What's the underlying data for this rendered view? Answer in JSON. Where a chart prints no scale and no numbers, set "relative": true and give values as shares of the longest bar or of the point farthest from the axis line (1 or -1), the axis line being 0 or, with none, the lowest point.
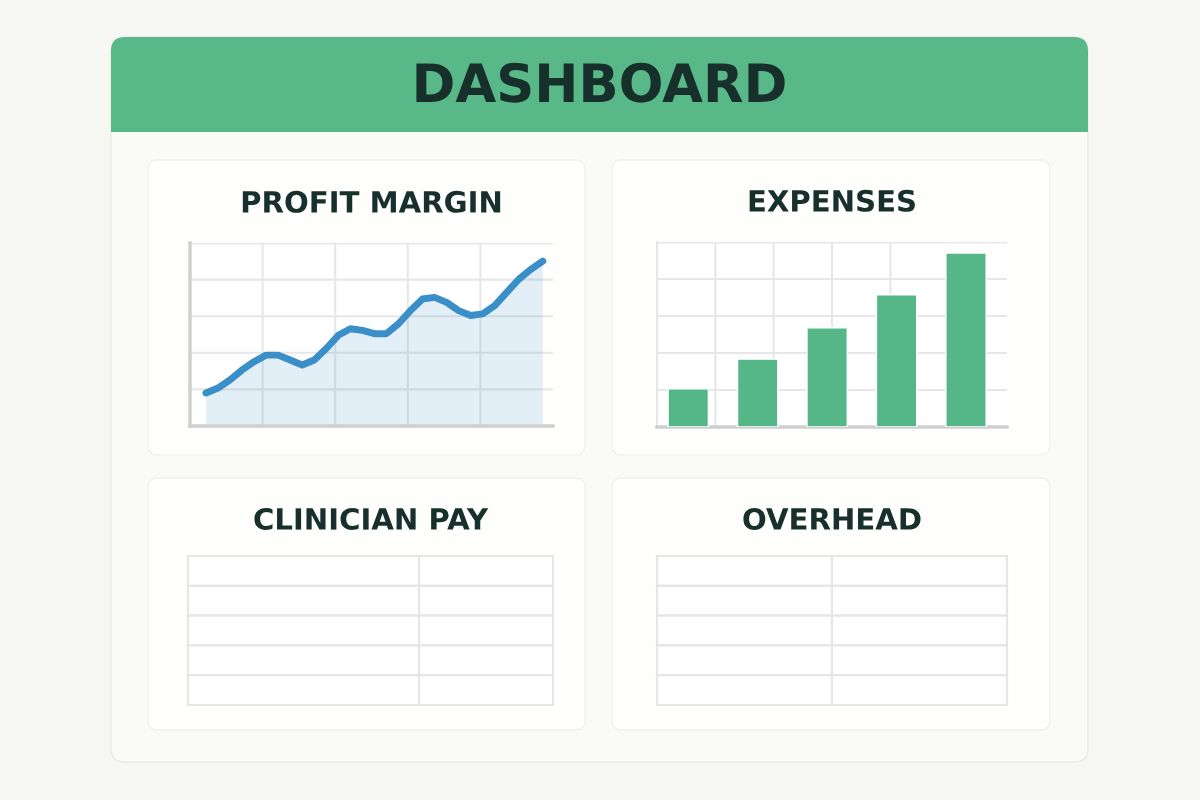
{
  "chart_data": [
    {
      "type": "other",
      "title": "DASHBOARD"
    },
    {
      "type": "area",
      "title": "PROFIT MARGIN",
      "categories": [
        null,
        null,
        null,
        null,
        null,
        null,
        null,
        null,
        null,
        null,
        null,
        null,
        null,
        null,
        null,
        null,
        null,
        null,
        null,
        null,
        null,
        null,
        null,
        null,
        null,
        null,
        null,
        null,
        null
      ],
      "values": [
        0.2,
        0.23,
        0.28,
        0.34,
        0.39,
        0.43,
        0.43,
        0.4,
        0.37,
        0.4,
        0.47,
        0.55,
        0.59,
        0.58,
        0.56,
        0.56,
        0.62,
        0.7,
        0.77,
        0.78,
        0.75,
        0.7,
        0.67,
        0.68,
        0.73,
        0.81,
        0.89,
        0.95,
        1.0
      ],
      "color": "#3a8fc8",
      "relative": true,
      "grid": true,
      "tick_labels": false
    },
    {
      "type": "bar",
      "title": "EXPENSES",
      "categories": [
        null,
        null,
        null,
        null,
        null
      ],
      "values": [
        0.22,
        0.39,
        0.57,
        0.76,
        1.0
      ],
      "color": "#55b688",
      "relative": true,
      "grid": true,
      "tick_labels": false
    },
    {
      "type": "other",
      "title": "CLINICIAN PAY"
    },
    {
      "type": "other",
      "title": "OVERHEAD"
    }
  ]
}
